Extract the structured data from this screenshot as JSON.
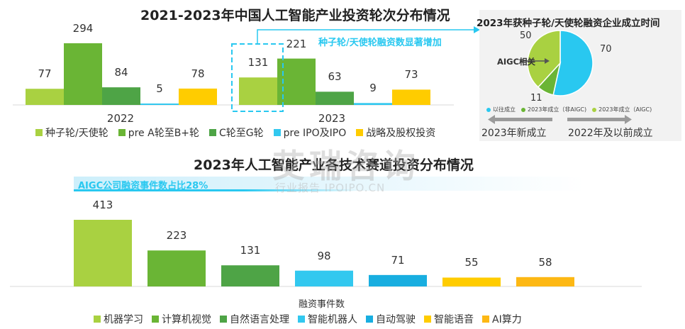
{
  "colors": {
    "seed": "#a9d141",
    "preA": "#6ab535",
    "ctog": "#4ea446",
    "preipo": "#32c8ef",
    "strategy": "#ffcc00",
    "ml": "#a9d141",
    "cv": "#6ab535",
    "nlp": "#4ea446",
    "robot": "#32c8ef",
    "auto": "#18aee0",
    "speech": "#ffcc00",
    "ai_compute": "#fdb814",
    "pie_prev": "#29c8f0",
    "pie_nonaigc": "#6ab535",
    "pie_aigc": "#a9d141",
    "highlight": "#29c8f0"
  },
  "chart_data": [
    {
      "type": "bar",
      "title": "2021-2023年中国人工智能产业投资轮次分布情况",
      "categories": [
        "2022",
        "2023"
      ],
      "series": [
        {
          "name": "种子轮/天使轮",
          "values": [
            77,
            131
          ]
        },
        {
          "name": "pre A轮至B+轮",
          "values": [
            294,
            221
          ]
        },
        {
          "name": "C轮至G轮",
          "values": [
            84,
            63
          ]
        },
        {
          "name": "pre IPO及IPO",
          "values": [
            5,
            9
          ]
        },
        {
          "name": "战略及股权投资",
          "values": [
            78,
            73
          ]
        }
      ],
      "annotation": "种子轮/天使轮融资数显著增加"
    },
    {
      "type": "pie",
      "title": "2023年获种子轮/天使轮融资企业成立时间",
      "labels": [
        "以往成立",
        "2023年成立（非AIGC)",
        "2023年成立（AIGC)"
      ],
      "values": [
        70,
        11,
        50
      ],
      "annotation": "AIGC相关",
      "arrow_left_label": "2023年新成立",
      "arrow_right_label": "2022年及以前成立"
    },
    {
      "type": "bar",
      "title": "2023年人工智能产业各技术赛道投资分布情况",
      "xlabel": "融资事件数",
      "categories": [
        "机器学习",
        "计算机视觉",
        "自然语言处理",
        "智能机器人",
        "自动驾驶",
        "智能语音",
        "AI算力"
      ],
      "values": [
        413,
        223,
        131,
        98,
        71,
        55,
        58
      ],
      "annotation": "AIGC公司融资事件数占比28%"
    }
  ],
  "watermark": {
    "main": "艾瑞咨询",
    "sub": "行业报告 IPOIPO.CN"
  }
}
